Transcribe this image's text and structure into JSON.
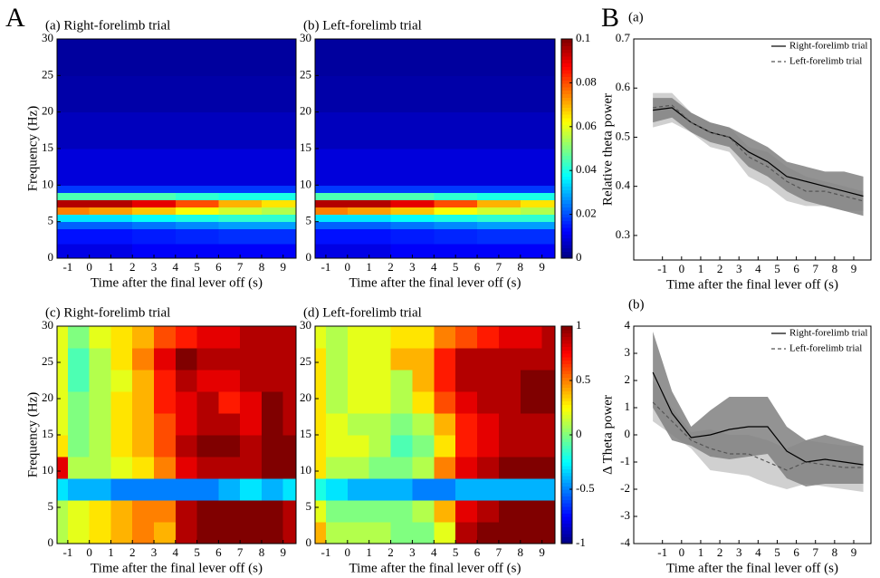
{
  "panels": [
    "A",
    "B"
  ],
  "chart_data": [
    {
      "type": "heatmap",
      "title": "(a) Right-forelimb trial",
      "xlabel": "Time after the final lever off (s)",
      "ylabel": "Frequency (Hz)",
      "xlim": [
        -1.5,
        9.6
      ],
      "ylim": [
        0,
        30
      ],
      "xticks": [
        -1,
        0,
        1,
        2,
        3,
        4,
        5,
        6,
        7,
        8,
        9
      ],
      "yticks": [
        0,
        5,
        10,
        15,
        20,
        25,
        30
      ],
      "zlim": [
        0,
        0.1
      ],
      "x_bins": [
        -1.5,
        0,
        2,
        4,
        6,
        8,
        9.6
      ],
      "y_bins": [
        0,
        2,
        4,
        5,
        6,
        7,
        8,
        9,
        10,
        15,
        20,
        25,
        30
      ],
      "z": [
        [
          0.01,
          0.01,
          0.012,
          0.012,
          0.012,
          0.012
        ],
        [
          0.014,
          0.014,
          0.015,
          0.016,
          0.017,
          0.017
        ],
        [
          0.022,
          0.022,
          0.024,
          0.026,
          0.028,
          0.028
        ],
        [
          0.035,
          0.035,
          0.038,
          0.04,
          0.042,
          0.042
        ],
        [
          0.075,
          0.072,
          0.068,
          0.062,
          0.058,
          0.055
        ],
        [
          0.095,
          0.095,
          0.09,
          0.08,
          0.07,
          0.065
        ],
        [
          0.045,
          0.045,
          0.045,
          0.042,
          0.04,
          0.04
        ],
        [
          0.018,
          0.018,
          0.018,
          0.018,
          0.018,
          0.018
        ],
        [
          0.009,
          0.009,
          0.009,
          0.009,
          0.009,
          0.009
        ],
        [
          0.006,
          0.006,
          0.006,
          0.006,
          0.006,
          0.006
        ],
        [
          0.004,
          0.004,
          0.004,
          0.004,
          0.004,
          0.004
        ],
        [
          0.003,
          0.003,
          0.003,
          0.003,
          0.003,
          0.003
        ]
      ]
    },
    {
      "type": "heatmap",
      "title": "(b) Left-forelimb trial",
      "xlabel": "Time after the final lever off (s)",
      "xlim": [
        -1.5,
        9.6
      ],
      "ylim": [
        0,
        30
      ],
      "xticks": [
        -1,
        0,
        1,
        2,
        3,
        4,
        5,
        6,
        7,
        8,
        9
      ],
      "yticks": [
        0,
        5,
        10,
        15,
        20,
        25,
        30
      ],
      "zlim": [
        0,
        0.1
      ],
      "colorbar": true,
      "zticks": [
        0,
        0.02,
        0.04,
        0.06,
        0.08,
        0.1
      ],
      "x_bins": [
        -1.5,
        0,
        2,
        4,
        6,
        8,
        9.6
      ],
      "y_bins": [
        0,
        2,
        4,
        5,
        6,
        7,
        8,
        9,
        10,
        15,
        20,
        25,
        30
      ],
      "z": [
        [
          0.01,
          0.01,
          0.012,
          0.012,
          0.012,
          0.012
        ],
        [
          0.014,
          0.014,
          0.015,
          0.016,
          0.017,
          0.017
        ],
        [
          0.022,
          0.022,
          0.024,
          0.026,
          0.028,
          0.028
        ],
        [
          0.035,
          0.035,
          0.038,
          0.04,
          0.042,
          0.042
        ],
        [
          0.075,
          0.072,
          0.068,
          0.062,
          0.058,
          0.055
        ],
        [
          0.095,
          0.095,
          0.09,
          0.08,
          0.07,
          0.065
        ],
        [
          0.045,
          0.045,
          0.045,
          0.042,
          0.04,
          0.04
        ],
        [
          0.018,
          0.018,
          0.018,
          0.018,
          0.018,
          0.018
        ],
        [
          0.009,
          0.009,
          0.009,
          0.009,
          0.009,
          0.009
        ],
        [
          0.006,
          0.006,
          0.006,
          0.006,
          0.006,
          0.006
        ],
        [
          0.004,
          0.004,
          0.004,
          0.004,
          0.004,
          0.004
        ],
        [
          0.003,
          0.003,
          0.003,
          0.003,
          0.003,
          0.003
        ]
      ]
    },
    {
      "type": "heatmap",
      "title": "(c) Right-forelimb trial",
      "xlabel": "Time after the final lever off (s)",
      "ylabel": "Frequency (Hz)",
      "xlim": [
        -1.5,
        9.6
      ],
      "ylim": [
        0,
        30
      ],
      "xticks": [
        -1,
        0,
        1,
        2,
        3,
        4,
        5,
        6,
        7,
        8,
        9
      ],
      "yticks": [
        0,
        5,
        10,
        15,
        20,
        25,
        30
      ],
      "zlim": [
        -1,
        1
      ],
      "x_bins": [
        -1.5,
        -1,
        0,
        1,
        2,
        3,
        4,
        5,
        6,
        7,
        8,
        9,
        9.6
      ],
      "y_bins": [
        0,
        3,
        6,
        9,
        12,
        15,
        18,
        21,
        24,
        27,
        30
      ],
      "z": [
        [
          0.1,
          0.2,
          0.3,
          0.4,
          0.5,
          0.4,
          0.9,
          1,
          1,
          1,
          1,
          0.9
        ],
        [
          0.1,
          0.2,
          0.3,
          0.4,
          0.5,
          0.5,
          0.9,
          1,
          1,
          1,
          1,
          0.9
        ],
        [
          -0.3,
          -0.4,
          -0.4,
          -0.5,
          -0.5,
          -0.5,
          -0.5,
          -0.5,
          -0.4,
          -0.3,
          -0.4,
          -0.3
        ],
        [
          0.8,
          0.1,
          0.1,
          0.2,
          0.3,
          0.5,
          0.8,
          0.9,
          0.9,
          0.9,
          1,
          1
        ],
        [
          0.3,
          0,
          0.1,
          0.3,
          0.4,
          0.6,
          0.9,
          1,
          1,
          0.9,
          1,
          1
        ],
        [
          0.2,
          0,
          0.1,
          0.3,
          0.4,
          0.6,
          0.8,
          0.9,
          0.9,
          0.8,
          1,
          0.9
        ],
        [
          0.2,
          0,
          0.1,
          0.3,
          0.4,
          0.7,
          0.8,
          0.9,
          0.7,
          0.8,
          1,
          0.9
        ],
        [
          0.2,
          -0.1,
          0.1,
          0.2,
          0.4,
          0.7,
          0.9,
          0.8,
          0.8,
          0.9,
          0.9,
          0.9
        ],
        [
          0.2,
          -0.1,
          0.1,
          0.3,
          0.5,
          0.8,
          1,
          0.9,
          0.9,
          0.9,
          0.9,
          0.9
        ],
        [
          0.2,
          0,
          0.2,
          0.3,
          0.4,
          0.6,
          0.7,
          0.8,
          0.8,
          0.9,
          0.9,
          0.9
        ]
      ]
    },
    {
      "type": "heatmap",
      "title": "(d) Left-forelimb trial",
      "xlabel": "Time after the final lever off (s)",
      "xlim": [
        -1.5,
        9.6
      ],
      "ylim": [
        0,
        30
      ],
      "xticks": [
        -1,
        0,
        1,
        2,
        3,
        4,
        5,
        6,
        7,
        8,
        9
      ],
      "yticks": [
        0,
        5,
        10,
        15,
        20,
        25,
        30
      ],
      "zlim": [
        -1,
        1
      ],
      "colorbar": true,
      "zticks": [
        -1,
        -0.5,
        0,
        0.5,
        1
      ],
      "x_bins": [
        -1.5,
        -1,
        0,
        1,
        2,
        3,
        4,
        5,
        6,
        7,
        8,
        9,
        9.6
      ],
      "y_bins": [
        0,
        3,
        6,
        9,
        12,
        15,
        18,
        21,
        24,
        27,
        30
      ],
      "z": [
        [
          0.4,
          0.1,
          0.1,
          0.1,
          0,
          0,
          0.2,
          0.9,
          1,
          1,
          1,
          1
        ],
        [
          0.2,
          0,
          0,
          0,
          0,
          0.1,
          0.4,
          0.8,
          0.9,
          1,
          1,
          1
        ],
        [
          -0.2,
          -0.3,
          -0.4,
          -0.4,
          -0.4,
          -0.5,
          -0.5,
          -0.4,
          -0.4,
          -0.4,
          -0.4,
          -0.4
        ],
        [
          0.3,
          0.1,
          0.1,
          0,
          0,
          0.1,
          0.5,
          0.8,
          0.9,
          1,
          1,
          1
        ],
        [
          0.3,
          0.2,
          0.2,
          0.1,
          -0.1,
          0,
          0.3,
          0.7,
          0.8,
          0.9,
          0.9,
          0.9
        ],
        [
          0.3,
          0.2,
          0.1,
          0.1,
          0,
          0.1,
          0.4,
          0.7,
          0.8,
          0.9,
          0.9,
          0.9
        ],
        [
          0.3,
          0.1,
          0.2,
          0.2,
          0.1,
          0.3,
          0.6,
          0.8,
          0.9,
          0.9,
          1,
          1
        ],
        [
          0.3,
          0.1,
          0.2,
          0.2,
          0.1,
          0.4,
          0.7,
          0.9,
          0.9,
          0.9,
          1,
          1
        ],
        [
          0.3,
          0.1,
          0.2,
          0.2,
          0.4,
          0.4,
          0.7,
          0.9,
          0.9,
          0.9,
          0.9,
          0.9
        ],
        [
          0.2,
          0.1,
          0.2,
          0.2,
          0.3,
          0.3,
          0.5,
          0.6,
          0.7,
          0.8,
          0.8,
          0.9
        ]
      ]
    },
    {
      "type": "line",
      "title": "(a)",
      "xlabel": "Time after the final lever off (s)",
      "ylabel": "Relative theta power",
      "xlim": [
        -2.5,
        9.9
      ],
      "ylim": [
        0.25,
        0.7
      ],
      "xticks": [
        -1,
        0,
        1,
        2,
        3,
        4,
        5,
        6,
        7,
        8,
        9
      ],
      "yticks": [
        0.3,
        0.4,
        0.5,
        0.6,
        0.7
      ],
      "legend": "upper right",
      "x": [
        -1.5,
        -0.5,
        0.5,
        1.5,
        2.5,
        3.5,
        4.5,
        5.5,
        6.5,
        7.5,
        8.5,
        9.5
      ],
      "series": [
        {
          "name": "Right-forelimb trial",
          "color": "#000000",
          "dashed": false,
          "band_color": "#808080",
          "values": [
            0.555,
            0.56,
            0.53,
            0.51,
            0.5,
            0.47,
            0.45,
            0.42,
            0.41,
            0.4,
            0.39,
            0.38
          ],
          "lower": [
            0.53,
            0.54,
            0.51,
            0.49,
            0.48,
            0.44,
            0.42,
            0.39,
            0.37,
            0.36,
            0.35,
            0.34
          ],
          "upper": [
            0.58,
            0.58,
            0.55,
            0.53,
            0.52,
            0.5,
            0.48,
            0.45,
            0.44,
            0.43,
            0.43,
            0.42
          ]
        },
        {
          "name": "Left-forelimb trial",
          "color": "#555555",
          "dashed": true,
          "band_color": "#c8c8c8",
          "values": [
            0.56,
            0.565,
            0.53,
            0.51,
            0.5,
            0.46,
            0.44,
            0.41,
            0.39,
            0.39,
            0.38,
            0.37
          ],
          "lower": [
            0.52,
            0.53,
            0.51,
            0.48,
            0.47,
            0.42,
            0.4,
            0.37,
            0.36,
            0.36,
            0.35,
            0.35
          ],
          "upper": [
            0.59,
            0.59,
            0.55,
            0.53,
            0.52,
            0.48,
            0.47,
            0.44,
            0.42,
            0.41,
            0.4,
            0.39
          ]
        }
      ]
    },
    {
      "type": "line",
      "title": "(b)",
      "xlabel": "Time after the final lever off (s)",
      "ylabel": "Δ Theta power",
      "xlim": [
        -2.5,
        9.9
      ],
      "ylim": [
        -4,
        4
      ],
      "xticks": [
        -1,
        0,
        1,
        2,
        3,
        4,
        5,
        6,
        7,
        8,
        9
      ],
      "yticks": [
        -4,
        -3,
        -2,
        -1,
        0,
        1,
        2,
        3,
        4
      ],
      "legend": "upper right",
      "x": [
        -1.5,
        -0.5,
        0.5,
        1.5,
        2.5,
        3.5,
        4.5,
        5.5,
        6.5,
        7.5,
        8.5,
        9.5
      ],
      "series": [
        {
          "name": "Right-forelimb trial",
          "color": "#000000",
          "dashed": false,
          "band_color": "#808080",
          "values": [
            2.3,
            0.8,
            -0.1,
            0,
            0.2,
            0.3,
            0.3,
            -0.6,
            -1,
            -0.9,
            -1,
            -1.1
          ],
          "lower": [
            1,
            -0.2,
            -0.4,
            -0.8,
            -0.9,
            -0.8,
            -0.7,
            -1.6,
            -1.9,
            -1.8,
            -1.8,
            -1.8
          ],
          "upper": [
            3.8,
            1.6,
            0.3,
            0.9,
            1.4,
            1.4,
            1.4,
            0.3,
            -0.2,
            0,
            -0.2,
            -0.4
          ]
        },
        {
          "name": "Left-forelimb trial",
          "color": "#555555",
          "dashed": true,
          "band_color": "#c8c8c8",
          "values": [
            1.2,
            0.5,
            -0.2,
            -0.5,
            -0.7,
            -0.7,
            -1,
            -1.3,
            -1,
            -1.1,
            -1.2,
            -1.2
          ],
          "lower": [
            0.5,
            0,
            -0.5,
            -1.3,
            -1.4,
            -1.5,
            -1.8,
            -2,
            -1.8,
            -1.9,
            -2,
            -2.1
          ],
          "upper": [
            2,
            1,
            0.1,
            0.2,
            0,
            0,
            -0.2,
            -0.5,
            -0.2,
            -0.3,
            -0.4,
            -0.4
          ]
        }
      ]
    }
  ]
}
